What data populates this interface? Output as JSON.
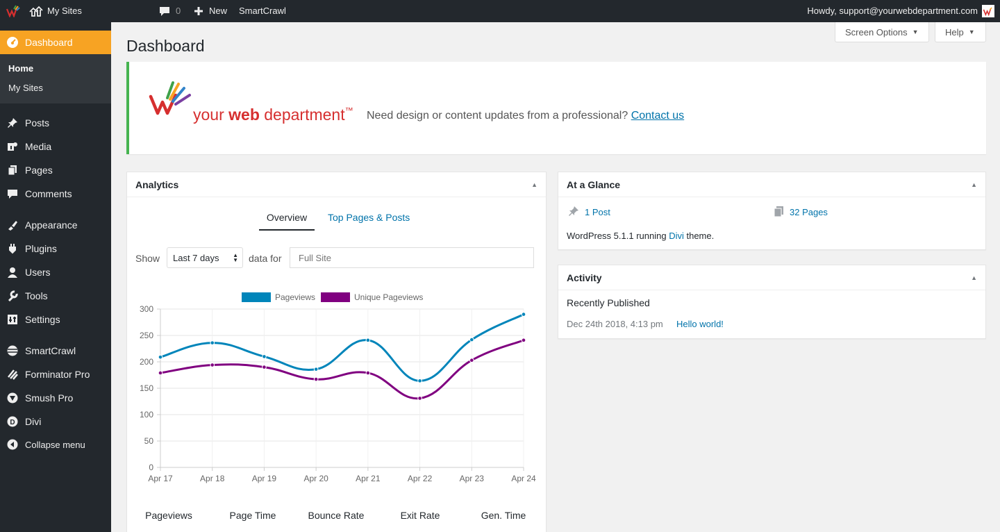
{
  "adminbar": {
    "my_sites": "My Sites",
    "comments_count": "0",
    "new_label": "New",
    "smartcrawl": "SmartCrawl",
    "howdy": "Howdy, support@yourwebdepartment.com"
  },
  "sidebar": {
    "dashboard": "Dashboard",
    "home": "Home",
    "my_sites": "My Sites",
    "items": [
      "Posts",
      "Media",
      "Pages",
      "Comments",
      "Appearance",
      "Plugins",
      "Users",
      "Tools",
      "Settings",
      "SmartCrawl",
      "Forminator Pro",
      "Smush Pro",
      "Divi"
    ],
    "collapse": "Collapse menu"
  },
  "top": {
    "screen_options": "Screen Options",
    "help": "Help"
  },
  "page_title": "Dashboard",
  "banner": {
    "logo_your": "your",
    "logo_web": "web",
    "logo_department": "department",
    "logo_tm": "™",
    "message": "Need design or content updates from a professional?",
    "link": "Contact us"
  },
  "analytics": {
    "title": "Analytics",
    "tab_overview": "Overview",
    "tab_top": "Top Pages & Posts",
    "show_label": "Show",
    "period": "Last 7 days",
    "data_for": "data for",
    "site_placeholder": "Full Site",
    "metrics": [
      "Pageviews",
      "Page Time",
      "Bounce Rate",
      "Exit Rate",
      "Gen. Time"
    ]
  },
  "chart_data": {
    "type": "line",
    "categories": [
      "Apr 17",
      "Apr 18",
      "Apr 19",
      "Apr 20",
      "Apr 21",
      "Apr 22",
      "Apr 23",
      "Apr 24"
    ],
    "series": [
      {
        "name": "Pageviews",
        "color": "#0085ba",
        "values": [
          209,
          236,
          210,
          186,
          241,
          164,
          242,
          290
        ]
      },
      {
        "name": "Unique Pageviews",
        "color": "#800080",
        "values": [
          179,
          194,
          190,
          167,
          179,
          131,
          203,
          241
        ]
      }
    ],
    "yticks": [
      0,
      50,
      100,
      150,
      200,
      250,
      300
    ],
    "ylim": [
      0,
      300
    ],
    "legend": "top"
  },
  "glance": {
    "title": "At a Glance",
    "posts": "1 Post",
    "pages": "32 Pages",
    "wp_pre": "WordPress 5.1.1 running",
    "theme": "Divi",
    "wp_post": "theme."
  },
  "activity": {
    "title": "Activity",
    "recent": "Recently Published",
    "date": "Dec 24th 2018, 4:13 pm",
    "post": "Hello world!"
  },
  "colors": {
    "accent": "#f7a323",
    "link": "#0073aa",
    "series1": "#0085ba",
    "series2": "#800080",
    "notice": "#46b450"
  }
}
